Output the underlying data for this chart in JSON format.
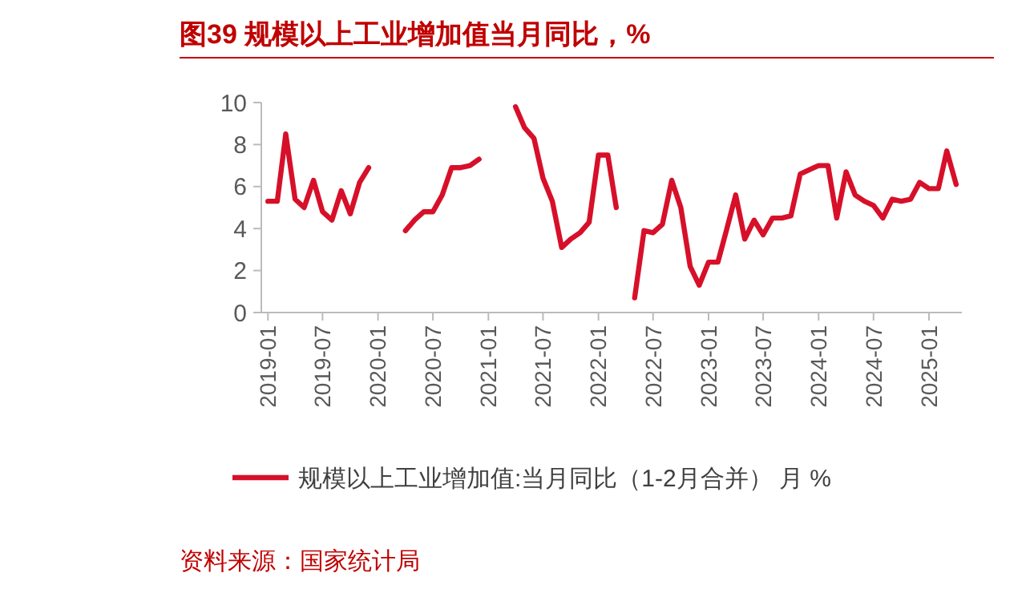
{
  "chart_data": {
    "type": "line",
    "title": "图39  规模以上工业增加值当月同比，%",
    "annotations": [
      "资料来源：国家统计局"
    ],
    "x": [
      "2019-01",
      "2019-02",
      "2019-03",
      "2019-04",
      "2019-05",
      "2019-06",
      "2019-07",
      "2019-08",
      "2019-09",
      "2019-10",
      "2019-11",
      "2019-12",
      "2020-01",
      "2020-02",
      "2020-03",
      "2020-04",
      "2020-05",
      "2020-06",
      "2020-07",
      "2020-08",
      "2020-09",
      "2020-10",
      "2020-11",
      "2020-12",
      "2021-01",
      "2021-02",
      "2021-03",
      "2021-04",
      "2021-05",
      "2021-06",
      "2021-07",
      "2021-08",
      "2021-09",
      "2021-10",
      "2021-11",
      "2021-12",
      "2022-01",
      "2022-02",
      "2022-03",
      "2022-04",
      "2022-05",
      "2022-06",
      "2022-07",
      "2022-08",
      "2022-09",
      "2022-10",
      "2022-11",
      "2022-12",
      "2023-01",
      "2023-02",
      "2023-03",
      "2023-04",
      "2023-05",
      "2023-06",
      "2023-07",
      "2023-08",
      "2023-09",
      "2023-10",
      "2023-11",
      "2023-12",
      "2024-01",
      "2024-02",
      "2024-03",
      "2024-04",
      "2024-05",
      "2024-06",
      "2024-07",
      "2024-08",
      "2024-09",
      "2024-10",
      "2024-11",
      "2024-12",
      "2025-01",
      "2025-02",
      "2025-03",
      "2025-04"
    ],
    "series": [
      {
        "name": "规模以上工业增加值:当月同比（1-2月合并） 月 %",
        "color": "#d7102a",
        "values": [
          5.3,
          5.3,
          8.5,
          5.4,
          5.0,
          6.3,
          4.8,
          4.4,
          5.8,
          4.7,
          6.2,
          6.9,
          null,
          null,
          null,
          3.9,
          4.4,
          4.8,
          4.8,
          5.6,
          6.9,
          6.9,
          7.0,
          7.3,
          null,
          null,
          null,
          9.8,
          8.8,
          8.3,
          6.4,
          5.3,
          3.1,
          3.5,
          3.8,
          4.3,
          7.5,
          7.5,
          5.0,
          null,
          0.7,
          3.9,
          3.8,
          4.2,
          6.3,
          5.0,
          2.2,
          1.3,
          2.4,
          2.4,
          3.9,
          5.6,
          3.5,
          4.4,
          3.7,
          4.5,
          4.5,
          4.6,
          6.6,
          6.8,
          7.0,
          7.0,
          4.5,
          6.7,
          5.6,
          5.3,
          5.1,
          4.5,
          5.4,
          5.3,
          5.4,
          6.2,
          5.9,
          5.9,
          7.7,
          6.1
        ]
      }
    ],
    "xlim": [
      "2018-12-10",
      "2025-04-20"
    ],
    "xticks": [
      {
        "value": "2019-01",
        "label": "2019-01"
      },
      {
        "value": "2019-07",
        "label": "2019-07"
      },
      {
        "value": "2020-01",
        "label": "2020-01"
      },
      {
        "value": "2020-07",
        "label": "2020-07"
      },
      {
        "value": "2021-01",
        "label": "2021-01"
      },
      {
        "value": "2021-07",
        "label": "2021-07"
      },
      {
        "value": "2022-01",
        "label": "2022-01"
      },
      {
        "value": "2022-07",
        "label": "2022-07"
      },
      {
        "value": "2023-01",
        "label": "2023-01"
      },
      {
        "value": "2023-07",
        "label": "2023-07"
      },
      {
        "value": "2024-01",
        "label": "2024-01"
      },
      {
        "value": "2024-07",
        "label": "2024-07"
      },
      {
        "value": "2025-01",
        "label": "2025-01"
      }
    ],
    "ylim": [
      0,
      10
    ],
    "yticks": [
      0,
      2,
      4,
      6,
      8,
      10
    ],
    "legend": "bottom",
    "grid": false,
    "line_style": "solid",
    "marker": "none"
  }
}
